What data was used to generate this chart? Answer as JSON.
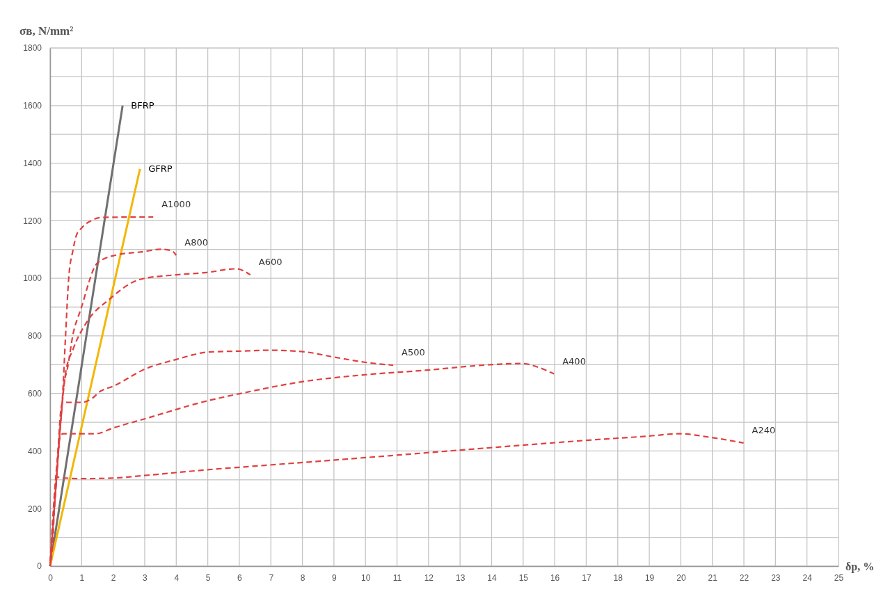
{
  "chart_data": {
    "type": "line",
    "xlabel": "δp, %",
    "ylabel": "σв, N/mm²",
    "xlim": [
      0,
      25
    ],
    "ylim": [
      0,
      1800
    ],
    "xticks": [
      0,
      1,
      2,
      3,
      4,
      5,
      6,
      7,
      8,
      9,
      10,
      11,
      12,
      13,
      14,
      15,
      16,
      17,
      18,
      19,
      20,
      21,
      22,
      23,
      24,
      25
    ],
    "yticks": [
      0,
      {
        "value": 100,
        "label": null
      },
      200,
      {
        "value": 300,
        "label": null
      },
      400,
      {
        "value": 500,
        "label": null
      },
      600,
      {
        "value": 700,
        "label": null
      },
      800,
      {
        "value": 900,
        "label": null
      },
      1000,
      {
        "value": 1100,
        "label": null
      },
      1200,
      {
        "value": 1300,
        "label": null
      },
      1400,
      {
        "value": 1500,
        "label": null
      },
      1600,
      {
        "value": 1700,
        "label": null
      },
      1800
    ],
    "grid": true,
    "series": [
      {
        "name": "BFRP",
        "color": "#707070",
        "line_style": "solid",
        "x": [
          0,
          2.3
        ],
        "values": [
          0,
          1600
        ]
      },
      {
        "name": "GFRP",
        "color": "#f2b705",
        "line_style": "solid",
        "x": [
          0,
          2.85
        ],
        "values": [
          0,
          1380
        ]
      },
      {
        "name": "A1000",
        "color": "#df4040",
        "line_style": "dashed",
        "x": [
          0,
          0.11,
          0.25,
          0.4,
          0.49,
          0.59,
          0.73,
          0.83,
          1.0,
          1.3,
          1.59,
          2.0,
          3.27
        ],
        "values": [
          0,
          208,
          400,
          600,
          800,
          1000,
          1100,
          1148,
          1175,
          1200,
          1211,
          1212,
          1213
        ]
      },
      {
        "name": "A800",
        "color": "#df4040",
        "line_style": "dashed",
        "x": [
          0,
          0.2,
          0.35,
          0.45,
          0.54,
          0.73,
          0.97,
          1.5,
          2.07,
          3.0,
          3.5,
          3.85,
          4.0
        ],
        "values": [
          0,
          300,
          520,
          640,
          681,
          807,
          891,
          1053,
          1080,
          1093,
          1101,
          1096,
          1080
        ]
      },
      {
        "name": "A600",
        "color": "#df4040",
        "line_style": "dashed",
        "x": [
          0,
          0.2,
          0.35,
          0.49,
          0.73,
          1.17,
          1.88,
          2.85,
          4.0,
          4.96,
          5.9,
          6.35
        ],
        "values": [
          0,
          300,
          520,
          670,
          754,
          849,
          927,
          996,
          1012,
          1020,
          1033,
          1012
        ]
      },
      {
        "name": "A500",
        "color": "#df4040",
        "line_style": "dashed",
        "x": [
          0,
          0.2,
          0.35,
          0.4,
          0.99,
          1.3,
          1.59,
          2.0,
          3.04,
          4.0,
          5.05,
          6.01,
          7.0,
          8.02,
          9.01,
          10.0,
          10.88
        ],
        "values": [
          0,
          300,
          550,
          569,
          569,
          580,
          607,
          625,
          686,
          718,
          744,
          747,
          750,
          745,
          726,
          708,
          698
        ]
      },
      {
        "name": "A400",
        "color": "#df4040",
        "line_style": "dashed",
        "x": [
          0,
          0.2,
          0.3,
          0.4,
          1.45,
          2.0,
          3.04,
          5.05,
          6.01,
          8.02,
          10.0,
          11.97,
          13.97,
          14.96,
          15.5,
          15.98
        ],
        "values": [
          0,
          300,
          440,
          460,
          460,
          480,
          513,
          576,
          599,
          641,
          665,
          681,
          700,
          704,
          690,
          668
        ]
      },
      {
        "name": "A240",
        "color": "#df4040",
        "line_style": "dashed",
        "x": [
          0,
          0.07,
          0.2,
          0.3,
          1.0,
          2.0,
          3.0,
          5.0,
          6.8,
          10.0,
          14.96,
          17.0,
          19.0,
          19.95,
          20.96,
          21.99
        ],
        "values": [
          0,
          60,
          310,
          308,
          304,
          306,
          315,
          335,
          350,
          377,
          420,
          437,
          452,
          460,
          447,
          428
        ]
      }
    ]
  }
}
